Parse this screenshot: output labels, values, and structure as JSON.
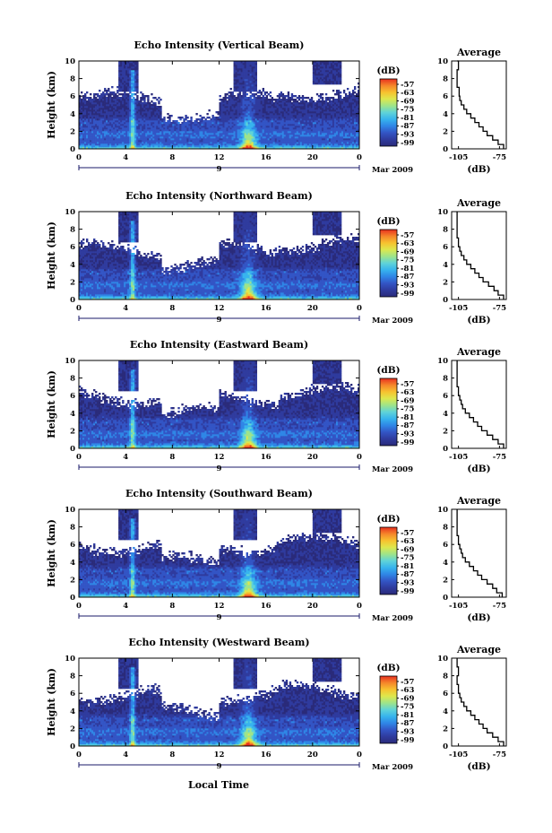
{
  "figure": {
    "xlabel": "Local Time",
    "ylabel": "Height (km)",
    "date_label": "Mar 2009",
    "period_label": "9",
    "colorbar_unit": "(dB)",
    "avg_title": "Average",
    "avg_xlabel": "(dB)",
    "colorbar_colors": [
      "#2a2b7a",
      "#2f3b9e",
      "#3355c5",
      "#2f86e6",
      "#37b4ee",
      "#5fd3d8",
      "#9ee48a",
      "#dde84d",
      "#f7c22f",
      "#f5862a",
      "#e8301f"
    ]
  },
  "chart_data": [
    {
      "type": "heatmap",
      "title": "Echo Intensity (Vertical Beam)",
      "x_ticks": [
        "0",
        "4",
        "8",
        "12",
        "16",
        "20",
        "0"
      ],
      "xlim": [
        0,
        24
      ],
      "y_ticks": [
        "0",
        "2",
        "4",
        "6",
        "8",
        "10"
      ],
      "ylim": [
        0,
        10
      ],
      "colorbar": {
        "unit": "(dB)",
        "ticks": [
          "-57",
          "-63",
          "-69",
          "-75",
          "-81",
          "-87",
          "-93",
          "-99"
        ]
      },
      "average_profile": {
        "title": "Average",
        "xlabel": "(dB)",
        "x_ticks": [
          "-105",
          "-75"
        ],
        "xlim": [
          -110,
          -70
        ],
        "y_ticks": [
          "0",
          "2",
          "4",
          "6",
          "8",
          "10"
        ],
        "ylim": [
          0,
          10
        ],
        "height_km": [
          0,
          0.5,
          1,
          1.5,
          2,
          2.5,
          3,
          3.5,
          4,
          4.5,
          5,
          5.5,
          6,
          7,
          8,
          9,
          10
        ],
        "values_db": [
          -72,
          -76,
          -80,
          -84,
          -87,
          -90,
          -93,
          -96,
          -99,
          -101,
          -103,
          -104,
          -104.5,
          -106,
          -106,
          -105,
          -106
        ]
      }
    },
    {
      "type": "heatmap",
      "title": "Echo Intensity (Northward Beam)",
      "x_ticks": [
        "0",
        "4",
        "8",
        "12",
        "16",
        "20",
        "0"
      ],
      "xlim": [
        0,
        24
      ],
      "y_ticks": [
        "0",
        "2",
        "4",
        "6",
        "8",
        "10"
      ],
      "ylim": [
        0,
        10
      ],
      "colorbar": {
        "unit": "(dB)",
        "ticks": [
          "-57",
          "-63",
          "-69",
          "-75",
          "-81",
          "-87",
          "-93",
          "-99"
        ]
      },
      "average_profile": {
        "title": "Average",
        "xlabel": "(dB)",
        "x_ticks": [
          "-105",
          "-75"
        ],
        "xlim": [
          -110,
          -70
        ],
        "y_ticks": [
          "0",
          "2",
          "4",
          "6",
          "8",
          "10"
        ],
        "ylim": [
          0,
          10
        ],
        "height_km": [
          0,
          0.5,
          1,
          1.5,
          2,
          2.5,
          3,
          3.5,
          4,
          4.5,
          5,
          5.5,
          6,
          7,
          8,
          9,
          10
        ],
        "values_db": [
          -72,
          -76,
          -79,
          -83,
          -87,
          -90,
          -93,
          -96,
          -99,
          -101,
          -103,
          -104,
          -105,
          -106,
          -106,
          -106,
          -106
        ]
      }
    },
    {
      "type": "heatmap",
      "title": "Echo Intensity (Eastward Beam)",
      "x_ticks": [
        "0",
        "4",
        "8",
        "12",
        "16",
        "20",
        "0"
      ],
      "xlim": [
        0,
        24
      ],
      "y_ticks": [
        "0",
        "2",
        "4",
        "6",
        "8",
        "10"
      ],
      "ylim": [
        0,
        10
      ],
      "colorbar": {
        "unit": "(dB)",
        "ticks": [
          "-57",
          "-63",
          "-69",
          "-75",
          "-81",
          "-87",
          "-93",
          "-99"
        ]
      },
      "average_profile": {
        "title": "Average",
        "xlabel": "(dB)",
        "x_ticks": [
          "-105",
          "-75"
        ],
        "xlim": [
          -110,
          -70
        ],
        "y_ticks": [
          "0",
          "2",
          "4",
          "6",
          "8",
          "10"
        ],
        "ylim": [
          0,
          10
        ],
        "height_km": [
          0,
          0.5,
          1,
          1.5,
          2,
          2.5,
          3,
          3.5,
          4,
          4.5,
          5,
          5.5,
          6,
          7,
          8,
          9,
          10
        ],
        "values_db": [
          -72,
          -76,
          -80,
          -84,
          -88,
          -91,
          -94,
          -97,
          -100,
          -102,
          -103,
          -104,
          -105,
          -106,
          -106,
          -106,
          -106
        ]
      }
    },
    {
      "type": "heatmap",
      "title": "Echo Intensity (Southward Beam)",
      "x_ticks": [
        "0",
        "4",
        "8",
        "12",
        "16",
        "20",
        "0"
      ],
      "xlim": [
        0,
        24
      ],
      "y_ticks": [
        "0",
        "2",
        "4",
        "6",
        "8",
        "10"
      ],
      "ylim": [
        0,
        10
      ],
      "colorbar": {
        "unit": "(dB)",
        "ticks": [
          "-57",
          "-63",
          "-69",
          "-75",
          "-81",
          "-87",
          "-93",
          "-99"
        ]
      },
      "average_profile": {
        "title": "Average",
        "xlabel": "(dB)",
        "x_ticks": [
          "-105",
          "-75"
        ],
        "xlim": [
          -110,
          -70
        ],
        "y_ticks": [
          "0",
          "2",
          "4",
          "6",
          "8",
          "10"
        ],
        "ylim": [
          0,
          10
        ],
        "height_km": [
          0,
          0.5,
          1,
          1.5,
          2,
          2.5,
          3,
          3.5,
          4,
          4.5,
          5,
          5.5,
          6,
          7,
          8,
          9,
          10
        ],
        "values_db": [
          -73,
          -77,
          -80,
          -84,
          -88,
          -91,
          -94,
          -97,
          -100,
          -102,
          -103,
          -104,
          -105,
          -106,
          -106,
          -106,
          -106
        ]
      }
    },
    {
      "type": "heatmap",
      "title": "Echo Intensity (Westward Beam)",
      "x_ticks": [
        "0",
        "4",
        "8",
        "12",
        "16",
        "20",
        "0"
      ],
      "xlim": [
        0,
        24
      ],
      "y_ticks": [
        "0",
        "2",
        "4",
        "6",
        "8",
        "10"
      ],
      "ylim": [
        0,
        10
      ],
      "colorbar": {
        "unit": "(dB)",
        "ticks": [
          "-57",
          "-63",
          "-69",
          "-75",
          "-81",
          "-87",
          "-93",
          "-99"
        ]
      },
      "average_profile": {
        "title": "Average",
        "xlabel": "(dB)",
        "x_ticks": [
          "-105",
          "-75"
        ],
        "xlim": [
          -110,
          -70
        ],
        "y_ticks": [
          "0",
          "2",
          "4",
          "6",
          "8",
          "10"
        ],
        "ylim": [
          0,
          10
        ],
        "height_km": [
          0,
          0.5,
          1,
          1.5,
          2,
          2.5,
          3,
          3.5,
          4,
          4.5,
          5,
          5.5,
          6,
          7,
          8,
          9,
          10
        ],
        "values_db": [
          -72,
          -76,
          -80,
          -84,
          -87,
          -90,
          -93,
          -96,
          -99,
          -101,
          -103,
          -104,
          -105,
          -106,
          -105,
          -106,
          -106
        ]
      }
    }
  ]
}
